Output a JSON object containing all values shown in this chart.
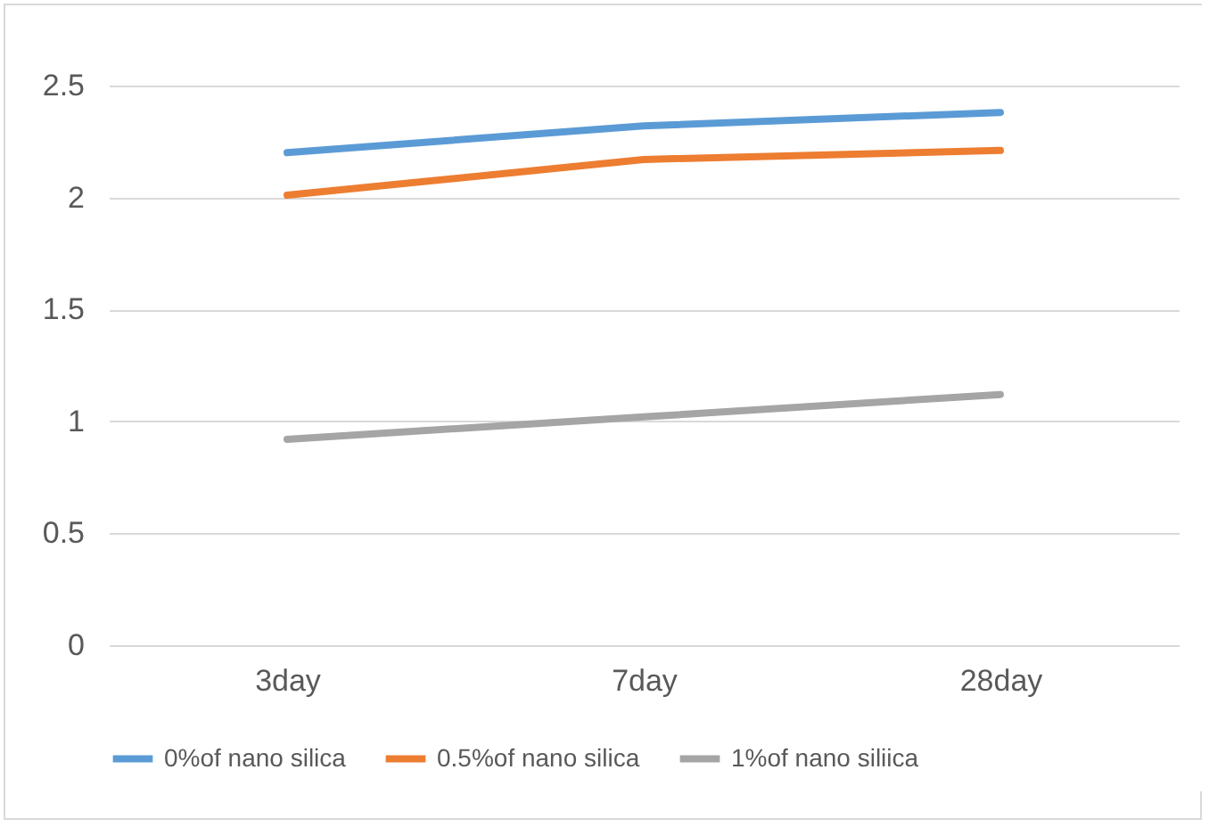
{
  "chart_data": {
    "type": "line",
    "categories": [
      "3day",
      "7day",
      "28day"
    ],
    "series": [
      {
        "name": "0%of nano silica",
        "color": "#5b9bd5",
        "values": [
          2.2,
          2.32,
          2.38
        ]
      },
      {
        "name": "0.5%of nano silica",
        "color": "#ed7d31",
        "values": [
          2.01,
          2.17,
          2.21
        ]
      },
      {
        "name": "1%of nano siliica",
        "color": "#a5a5a5",
        "values": [
          0.92,
          1.02,
          1.12
        ]
      }
    ],
    "ylim": [
      0,
      2.5
    ],
    "yticks": [
      0,
      0.5,
      1,
      1.5,
      2,
      2.5
    ],
    "grid": "y",
    "legend": "bottom",
    "marker": "none",
    "line_style": "solid"
  }
}
